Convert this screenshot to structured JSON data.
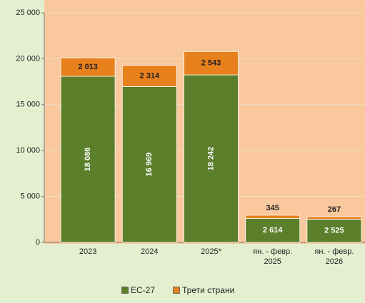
{
  "chart_data": {
    "type": "stacked_bar",
    "categories": [
      "2023",
      "2024",
      "2025*",
      "ян. - февр. 2025",
      "ян. - февр. 2026"
    ],
    "series": [
      {
        "name": "ЕС-27",
        "color": "#5b7f2b",
        "values": [
          18086,
          16969,
          18242,
          2614,
          2525
        ],
        "value_labels": [
          "18 086",
          "16 969",
          "18 242",
          "2 614",
          "2 525"
        ]
      },
      {
        "name": "Трети страни",
        "color": "#e8801c",
        "values": [
          2013,
          2314,
          2543,
          345,
          267
        ],
        "value_labels": [
          "2 013",
          "2 314",
          "2 543",
          "345",
          "267"
        ]
      }
    ],
    "ylim": [
      0,
      25000
    ],
    "yticks": [
      0,
      {
        "value": 5000,
        "label": "5 000"
      },
      {
        "value": 10000,
        "label": "10 000"
      },
      {
        "value": 15000,
        "label": "15 000"
      },
      {
        "value": 20000,
        "label": "20 000"
      },
      {
        "value": 25000,
        "label": "25 000"
      }
    ],
    "grid": true
  }
}
